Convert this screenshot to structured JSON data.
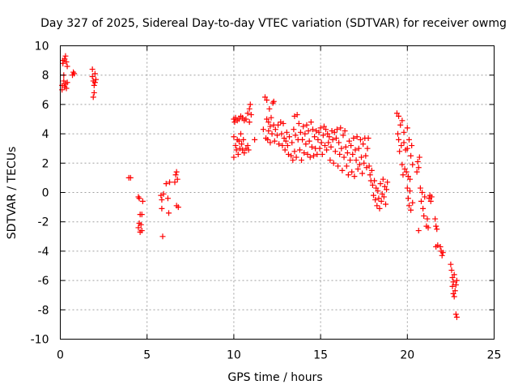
{
  "chart_data": {
    "type": "scatter",
    "title": "Day 327 of 2025, Sidereal Day-to-day VTEC variation (SDTVAR) for receiver owmg",
    "xlabel": "GPS time / hours",
    "ylabel": "SDTVAR / TECUs",
    "xlim": [
      0,
      25
    ],
    "ylim": [
      -10,
      10
    ],
    "x_ticks": [
      0,
      5,
      10,
      15,
      20,
      25
    ],
    "y_ticks": [
      -10,
      -8,
      -6,
      -4,
      -2,
      0,
      2,
      4,
      6,
      8,
      10
    ],
    "x_tick_labels": [
      "0",
      "5",
      "10",
      "15",
      "20",
      "25"
    ],
    "y_tick_labels": [
      "-10",
      "-8",
      "-6",
      "-4",
      "-2",
      "0",
      "2",
      "4",
      "6",
      "8",
      "10"
    ],
    "grid": true,
    "marker": "+",
    "series": [
      {
        "name": "SDTVAR",
        "color": "#ff0000",
        "points": [
          [
            0.1,
            7.0
          ],
          [
            0.1,
            7.3
          ],
          [
            0.15,
            8.8
          ],
          [
            0.15,
            9.0
          ],
          [
            0.2,
            7.6
          ],
          [
            0.2,
            8.0
          ],
          [
            0.25,
            9.1
          ],
          [
            0.25,
            7.2
          ],
          [
            0.3,
            9.3
          ],
          [
            0.3,
            7.4
          ],
          [
            0.35,
            8.9
          ],
          [
            0.35,
            7.1
          ],
          [
            0.4,
            7.5
          ],
          [
            0.4,
            8.6
          ],
          [
            0.7,
            8.0
          ],
          [
            0.75,
            8.2
          ],
          [
            0.8,
            8.1
          ],
          [
            1.85,
            8.4
          ],
          [
            1.85,
            7.9
          ],
          [
            1.9,
            6.5
          ],
          [
            1.9,
            7.6
          ],
          [
            1.95,
            6.8
          ],
          [
            1.95,
            7.3
          ],
          [
            2.0,
            8.1
          ],
          [
            2.0,
            7.5
          ],
          [
            2.05,
            7.7
          ],
          [
            3.95,
            1.0
          ],
          [
            4.05,
            1.0
          ],
          [
            4.5,
            -0.3
          ],
          [
            4.5,
            -2.4
          ],
          [
            4.55,
            -2.1
          ],
          [
            4.55,
            -0.4
          ],
          [
            4.6,
            -2.7
          ],
          [
            4.6,
            -1.5
          ],
          [
            4.65,
            -2.2
          ],
          [
            4.7,
            -1.5
          ],
          [
            4.7,
            -2.6
          ],
          [
            4.75,
            -0.6
          ],
          [
            5.8,
            -0.2
          ],
          [
            5.85,
            -0.5
          ],
          [
            5.85,
            -1.1
          ],
          [
            5.9,
            -3.0
          ],
          [
            5.95,
            -0.1
          ],
          [
            6.1,
            0.6
          ],
          [
            6.2,
            -0.4
          ],
          [
            6.25,
            -1.4
          ],
          [
            6.3,
            0.7
          ],
          [
            6.6,
            0.7
          ],
          [
            6.65,
            1.2
          ],
          [
            6.7,
            1.4
          ],
          [
            6.7,
            -0.9
          ],
          [
            6.75,
            0.9
          ],
          [
            6.8,
            -1.0
          ],
          [
            10.0,
            5.0
          ],
          [
            10.0,
            3.8
          ],
          [
            10.0,
            2.4
          ],
          [
            10.05,
            4.8
          ],
          [
            10.1,
            3.2
          ],
          [
            10.1,
            5.1
          ],
          [
            10.15,
            2.9
          ],
          [
            10.2,
            3.6
          ],
          [
            10.2,
            4.9
          ],
          [
            10.25,
            2.6
          ],
          [
            10.3,
            3.5
          ],
          [
            10.3,
            5.0
          ],
          [
            10.35,
            3.0
          ],
          [
            10.4,
            4.0
          ],
          [
            10.4,
            5.2
          ],
          [
            10.45,
            3.3
          ],
          [
            10.5,
            2.9
          ],
          [
            10.5,
            5.1
          ],
          [
            10.55,
            3.6
          ],
          [
            10.6,
            2.7
          ],
          [
            10.6,
            4.9
          ],
          [
            10.7,
            3.0
          ],
          [
            10.7,
            5.0
          ],
          [
            10.8,
            3.2
          ],
          [
            10.8,
            5.4
          ],
          [
            10.85,
            2.9
          ],
          [
            10.9,
            5.7
          ],
          [
            10.9,
            4.8
          ],
          [
            10.95,
            6.0
          ],
          [
            11.0,
            5.3
          ],
          [
            11.2,
            3.6
          ],
          [
            11.7,
            4.3
          ],
          [
            11.8,
            6.5
          ],
          [
            11.85,
            3.7
          ],
          [
            11.9,
            6.3
          ],
          [
            11.9,
            5.0
          ],
          [
            11.95,
            3.6
          ],
          [
            12.0,
            4.8
          ],
          [
            12.0,
            4.2
          ],
          [
            12.05,
            5.7
          ],
          [
            12.1,
            4.5
          ],
          [
            12.1,
            3.4
          ],
          [
            12.15,
            5.1
          ],
          [
            12.2,
            4.0
          ],
          [
            12.25,
            6.1
          ],
          [
            12.3,
            6.2
          ],
          [
            12.3,
            4.6
          ],
          [
            12.35,
            3.5
          ],
          [
            12.4,
            4.3
          ],
          [
            12.5,
            3.9
          ],
          [
            12.55,
            4.6
          ],
          [
            12.6,
            3.3
          ],
          [
            12.7,
            4.8
          ],
          [
            12.75,
            4.0
          ],
          [
            12.8,
            3.2
          ],
          [
            12.85,
            4.7
          ],
          [
            12.9,
            3.7
          ],
          [
            12.95,
            2.9
          ],
          [
            13.0,
            3.5
          ],
          [
            13.05,
            4.1
          ],
          [
            13.1,
            3.2
          ],
          [
            13.15,
            2.6
          ],
          [
            13.2,
            3.8
          ],
          [
            13.3,
            2.5
          ],
          [
            13.35,
            3.4
          ],
          [
            13.4,
            2.2
          ],
          [
            13.45,
            4.3
          ],
          [
            13.5,
            5.2
          ],
          [
            13.5,
            2.8
          ],
          [
            13.55,
            3.9
          ],
          [
            13.6,
            2.4
          ],
          [
            13.65,
            5.3
          ],
          [
            13.7,
            3.6
          ],
          [
            13.75,
            4.7
          ],
          [
            13.8,
            2.9
          ],
          [
            13.85,
            4.1
          ],
          [
            13.9,
            2.2
          ],
          [
            13.95,
            3.6
          ],
          [
            14.0,
            4.5
          ],
          [
            14.05,
            2.7
          ],
          [
            14.1,
            4.0
          ],
          [
            14.15,
            3.3
          ],
          [
            14.2,
            4.6
          ],
          [
            14.25,
            2.6
          ],
          [
            14.3,
            4.2
          ],
          [
            14.35,
            3.5
          ],
          [
            14.4,
            2.4
          ],
          [
            14.45,
            4.8
          ],
          [
            14.5,
            3.1
          ],
          [
            14.55,
            4.3
          ],
          [
            14.6,
            2.5
          ],
          [
            14.65,
            3.8
          ],
          [
            14.7,
            3.0
          ],
          [
            14.75,
            4.2
          ],
          [
            14.8,
            2.6
          ],
          [
            14.85,
            3.6
          ],
          [
            14.9,
            4.1
          ],
          [
            14.95,
            3.0
          ],
          [
            15.0,
            4.4
          ],
          [
            15.05,
            3.4
          ],
          [
            15.1,
            2.6
          ],
          [
            15.15,
            3.9
          ],
          [
            15.2,
            4.5
          ],
          [
            15.25,
            3.2
          ],
          [
            15.3,
            4.3
          ],
          [
            15.35,
            2.9
          ],
          [
            15.4,
            4.0
          ],
          [
            15.45,
            3.4
          ],
          [
            15.5,
            3.8
          ],
          [
            15.55,
            2.2
          ],
          [
            15.6,
            3.1
          ],
          [
            15.65,
            4.2
          ],
          [
            15.7,
            3.6
          ],
          [
            15.75,
            2.0
          ],
          [
            15.8,
            4.1
          ],
          [
            15.85,
            2.8
          ],
          [
            15.9,
            3.7
          ],
          [
            15.95,
            4.3
          ],
          [
            16.0,
            1.8
          ],
          [
            16.05,
            3.4
          ],
          [
            16.1,
            2.6
          ],
          [
            16.15,
            4.4
          ],
          [
            16.2,
            3.0
          ],
          [
            16.25,
            1.5
          ],
          [
            16.3,
            3.9
          ],
          [
            16.35,
            2.4
          ],
          [
            16.4,
            4.2
          ],
          [
            16.45,
            3.1
          ],
          [
            16.5,
            1.8
          ],
          [
            16.55,
            2.7
          ],
          [
            16.6,
            1.2
          ],
          [
            16.65,
            3.5
          ],
          [
            16.7,
            2.2
          ],
          [
            16.75,
            3.2
          ],
          [
            16.8,
            1.4
          ],
          [
            16.85,
            2.6
          ],
          [
            16.9,
            3.7
          ],
          [
            16.95,
            1.1
          ],
          [
            17.0,
            2.9
          ],
          [
            17.05,
            2.2
          ],
          [
            17.1,
            3.8
          ],
          [
            17.15,
            1.6
          ],
          [
            17.2,
            3.0
          ],
          [
            17.25,
            1.9
          ],
          [
            17.3,
            3.6
          ],
          [
            17.35,
            2.4
          ],
          [
            17.4,
            1.3
          ],
          [
            17.45,
            3.3
          ],
          [
            17.5,
            2.0
          ],
          [
            17.55,
            3.7
          ],
          [
            17.6,
            2.5
          ],
          [
            17.65,
            1.7
          ],
          [
            17.7,
            3.0
          ],
          [
            17.75,
            3.7
          ],
          [
            17.8,
            1.8
          ],
          [
            17.85,
            1.2
          ],
          [
            17.9,
            0.8
          ],
          [
            17.95,
            1.5
          ],
          [
            18.0,
            0.5
          ],
          [
            18.05,
            -0.2
          ],
          [
            18.1,
            0.8
          ],
          [
            18.15,
            -0.5
          ],
          [
            18.2,
            0.3
          ],
          [
            18.25,
            -0.9
          ],
          [
            18.3,
            0.1
          ],
          [
            18.35,
            -0.4
          ],
          [
            18.4,
            -1.1
          ],
          [
            18.45,
            0.6
          ],
          [
            18.5,
            -0.6
          ],
          [
            18.55,
            -0.1
          ],
          [
            18.6,
            0.9
          ],
          [
            18.65,
            -0.3
          ],
          [
            18.7,
            0.4
          ],
          [
            18.75,
            -0.8
          ],
          [
            18.8,
            0.2
          ],
          [
            18.85,
            0.7
          ],
          [
            19.4,
            5.4
          ],
          [
            19.45,
            4.0
          ],
          [
            19.5,
            3.6
          ],
          [
            19.5,
            5.2
          ],
          [
            19.55,
            2.8
          ],
          [
            19.6,
            4.6
          ],
          [
            19.65,
            3.2
          ],
          [
            19.7,
            1.9
          ],
          [
            19.7,
            4.9
          ],
          [
            19.75,
            1.2
          ],
          [
            19.8,
            3.4
          ],
          [
            19.8,
            4.1
          ],
          [
            19.85,
            1.6
          ],
          [
            19.9,
            2.9
          ],
          [
            19.95,
            1.4
          ],
          [
            20.0,
            3.0
          ],
          [
            20.0,
            4.4
          ],
          [
            20.05,
            1.1
          ],
          [
            20.1,
            3.6
          ],
          [
            20.15,
            0.9
          ],
          [
            20.2,
            2.5
          ],
          [
            20.25,
            3.2
          ],
          [
            20.3,
            1.9
          ],
          [
            20.0,
            0.3
          ],
          [
            20.05,
            -0.4
          ],
          [
            20.1,
            -0.9
          ],
          [
            20.15,
            0.1
          ],
          [
            20.2,
            -1.2
          ],
          [
            20.3,
            -0.7
          ],
          [
            20.55,
            1.4
          ],
          [
            20.6,
            2.1
          ],
          [
            20.65,
            1.7
          ],
          [
            20.7,
            2.4
          ],
          [
            20.65,
            -2.6
          ],
          [
            20.75,
            0.3
          ],
          [
            20.8,
            -0.6
          ],
          [
            20.85,
            0.0
          ],
          [
            20.9,
            -1.1
          ],
          [
            20.95,
            -1.6
          ],
          [
            21.0,
            -0.3
          ],
          [
            21.1,
            -2.3
          ],
          [
            21.15,
            -1.8
          ],
          [
            21.2,
            -2.4
          ],
          [
            21.25,
            -0.4
          ],
          [
            21.3,
            -0.2
          ],
          [
            21.35,
            -0.6
          ],
          [
            21.4,
            -0.3
          ],
          [
            21.6,
            -1.8
          ],
          [
            21.65,
            -2.3
          ],
          [
            21.7,
            -2.5
          ],
          [
            21.65,
            -3.7
          ],
          [
            21.75,
            -3.6
          ],
          [
            21.9,
            -3.7
          ],
          [
            21.95,
            -4.0
          ],
          [
            22.0,
            -4.3
          ],
          [
            22.05,
            -4.1
          ],
          [
            22.5,
            -4.9
          ],
          [
            22.55,
            -5.3
          ],
          [
            22.6,
            -6.4
          ],
          [
            22.6,
            -5.8
          ],
          [
            22.65,
            -6.9
          ],
          [
            22.65,
            -6.1
          ],
          [
            22.7,
            -7.1
          ],
          [
            22.7,
            -5.6
          ],
          [
            22.75,
            -6.7
          ],
          [
            22.8,
            -6.3
          ],
          [
            22.8,
            -8.3
          ],
          [
            22.85,
            -8.5
          ],
          [
            22.85,
            -6.0
          ]
        ]
      }
    ]
  }
}
